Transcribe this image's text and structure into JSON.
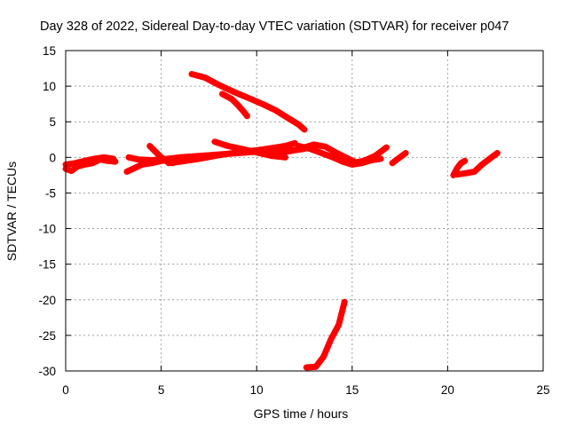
{
  "chart_data": {
    "type": "line",
    "title": "Day 328 of 2022, Sidereal Day-to-day VTEC variation (SDTVAR) for receiver p047",
    "xlabel": "GPS time / hours",
    "ylabel": "SDTVAR / TECUs",
    "xlim": [
      0,
      25
    ],
    "ylim": [
      -30,
      15
    ],
    "xticks": [
      0,
      5,
      10,
      15,
      20,
      25
    ],
    "yticks": [
      15,
      10,
      5,
      0,
      -5,
      -10,
      -15,
      -20,
      -25,
      -30
    ],
    "x_tick_labels": [
      "0",
      "5",
      "10",
      "15",
      "20",
      "25"
    ],
    "y_tick_labels": [
      "15",
      "10",
      "5",
      "0",
      "-5",
      "-10",
      "-15",
      "-20",
      "-25",
      "-30"
    ],
    "grid": true,
    "marker_color": "#ff0000",
    "series": [
      {
        "name": "track-1",
        "points": [
          [
            0,
            -1.6
          ],
          [
            0.3,
            -1.9
          ],
          [
            0.6,
            -1.3
          ],
          [
            1.0,
            -1.0
          ],
          [
            1.4,
            -0.8
          ],
          [
            1.8,
            -0.3
          ],
          [
            2.2,
            -0.5
          ],
          [
            2.6,
            -0.6
          ]
        ]
      },
      {
        "name": "track-2",
        "points": [
          [
            0,
            -1.0
          ],
          [
            0.5,
            -0.8
          ],
          [
            1.0,
            -0.5
          ],
          [
            1.5,
            -0.2
          ],
          [
            2.0,
            0.0
          ],
          [
            2.5,
            -0.2
          ]
        ]
      },
      {
        "name": "track-3",
        "points": [
          [
            3.2,
            -2.0
          ],
          [
            3.6,
            -1.5
          ],
          [
            4.0,
            -1.0
          ],
          [
            4.5,
            -0.8
          ],
          [
            5.0,
            -0.5
          ],
          [
            5.5,
            -0.4
          ],
          [
            6.0,
            -0.2
          ]
        ]
      },
      {
        "name": "track-4",
        "points": [
          [
            3.3,
            0.0
          ],
          [
            3.8,
            -0.3
          ],
          [
            4.5,
            -0.4
          ],
          [
            5.0,
            -0.3
          ],
          [
            6.0,
            0.0
          ],
          [
            7.0,
            0.2
          ],
          [
            8.0,
            0.4
          ],
          [
            9.0,
            0.6
          ],
          [
            10.0,
            0.8
          ],
          [
            11.0,
            0.9
          ],
          [
            12.0,
            1.0
          ],
          [
            12.5,
            1.2
          ]
        ]
      },
      {
        "name": "track-5",
        "points": [
          [
            4.4,
            1.6
          ],
          [
            4.7,
            0.8
          ],
          [
            5.0,
            0.0
          ],
          [
            5.3,
            -0.6
          ],
          [
            5.6,
            -0.8
          ]
        ]
      },
      {
        "name": "track-6",
        "points": [
          [
            5.4,
            -0.8
          ],
          [
            6.0,
            -0.6
          ],
          [
            7.0,
            -0.2
          ],
          [
            8.0,
            0.3
          ],
          [
            9.0,
            0.7
          ],
          [
            10.0,
            1.0
          ],
          [
            10.8,
            1.3
          ],
          [
            11.5,
            1.6
          ],
          [
            12.0,
            2.0
          ]
        ]
      },
      {
        "name": "track-7",
        "points": [
          [
            7.8,
            2.2
          ],
          [
            8.5,
            1.6
          ],
          [
            9.2,
            1.2
          ],
          [
            10.0,
            0.7
          ],
          [
            10.8,
            0.2
          ],
          [
            11.5,
            0.0
          ]
        ]
      },
      {
        "name": "track-8",
        "points": [
          [
            11.0,
            0.6
          ],
          [
            11.8,
            0.9
          ],
          [
            12.5,
            1.4
          ],
          [
            13.0,
            1.8
          ],
          [
            13.6,
            1.5
          ],
          [
            14.2,
            0.6
          ],
          [
            14.8,
            -0.2
          ],
          [
            15.2,
            -0.7
          ],
          [
            15.6,
            -0.5
          ],
          [
            16.2,
            0.2
          ],
          [
            16.6,
            1.0
          ],
          [
            16.8,
            1.4
          ]
        ]
      },
      {
        "name": "track-9",
        "points": [
          [
            12.2,
            1.6
          ],
          [
            12.8,
            1.2
          ],
          [
            13.4,
            0.6
          ],
          [
            14.0,
            0.0
          ],
          [
            14.5,
            -0.6
          ],
          [
            15.0,
            -1.0
          ],
          [
            15.5,
            -0.8
          ],
          [
            16.0,
            -0.4
          ],
          [
            16.5,
            -0.2
          ]
        ]
      },
      {
        "name": "track-10",
        "points": [
          [
            17.1,
            -0.8
          ],
          [
            17.3,
            -0.4
          ],
          [
            17.6,
            0.2
          ],
          [
            17.8,
            0.6
          ]
        ]
      },
      {
        "name": "track-11",
        "points": [
          [
            20.3,
            -2.5
          ],
          [
            20.5,
            -1.5
          ],
          [
            20.7,
            -0.8
          ],
          [
            20.9,
            -0.5
          ]
        ]
      },
      {
        "name": "track-12",
        "points": [
          [
            20.5,
            -2.4
          ],
          [
            21.0,
            -2.2
          ],
          [
            21.4,
            -2.0
          ],
          [
            21.8,
            -1.0
          ],
          [
            22.2,
            -0.2
          ],
          [
            22.6,
            0.6
          ]
        ]
      },
      {
        "name": "track-13",
        "points": [
          [
            6.6,
            11.7
          ],
          [
            7.3,
            11.2
          ],
          [
            8.0,
            10.2
          ],
          [
            8.8,
            9.2
          ],
          [
            9.6,
            8.3
          ],
          [
            10.3,
            7.5
          ],
          [
            11.0,
            6.6
          ],
          [
            11.6,
            5.6
          ],
          [
            12.2,
            4.6
          ],
          [
            12.5,
            3.9
          ]
        ]
      },
      {
        "name": "track-14",
        "points": [
          [
            8.2,
            8.9
          ],
          [
            8.7,
            8.2
          ],
          [
            9.0,
            7.4
          ],
          [
            9.3,
            6.5
          ],
          [
            9.5,
            5.8
          ]
        ]
      },
      {
        "name": "track-15",
        "points": [
          [
            12.6,
            -29.5
          ],
          [
            13.1,
            -29.4
          ],
          [
            13.5,
            -28.0
          ],
          [
            13.9,
            -25.5
          ],
          [
            14.3,
            -23.5
          ],
          [
            14.6,
            -20.3
          ]
        ]
      }
    ]
  }
}
